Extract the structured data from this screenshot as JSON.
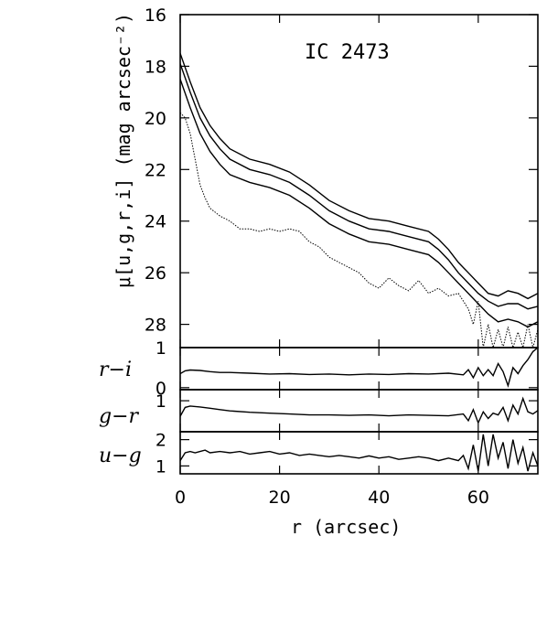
{
  "chart_data": {
    "type": "line",
    "title": "IC 2473",
    "panels": [
      {
        "id": "surface-brightness",
        "ylabel": "μ[u,g,r,i] (mag arcsec⁻²)",
        "ylim": [
          28.9,
          16
        ],
        "yticks": [
          16,
          18,
          20,
          22,
          24,
          26,
          28
        ],
        "series": [
          {
            "x": [
              0,
              2,
              4,
              6,
              8,
              10,
              14,
              18,
              22,
              26,
              30,
              34,
              38,
              42,
              46,
              50,
              52,
              54,
              56,
              58,
              60,
              62,
              64,
              66,
              68,
              70,
              72
            ],
            "y": [
              17.5,
              18.6,
              19.6,
              20.3,
              20.8,
              21.2,
              21.6,
              21.8,
              22.1,
              22.6,
              23.2,
              23.6,
              23.9,
              24.0,
              24.2,
              24.4,
              24.7,
              25.1,
              25.6,
              26.0,
              26.4,
              26.8,
              26.9,
              26.7,
              26.8,
              27.0,
              26.8
            ]
          },
          {
            "x": [
              0,
              2,
              4,
              6,
              8,
              10,
              14,
              18,
              22,
              26,
              30,
              34,
              38,
              42,
              46,
              50,
              52,
              54,
              56,
              58,
              60,
              62,
              64,
              66,
              68,
              70,
              72
            ],
            "y": [
              17.9,
              19.0,
              20.0,
              20.7,
              21.2,
              21.6,
              22.0,
              22.2,
              22.5,
              23.0,
              23.6,
              24.0,
              24.3,
              24.4,
              24.6,
              24.8,
              25.1,
              25.5,
              26.0,
              26.4,
              26.8,
              27.1,
              27.3,
              27.2,
              27.2,
              27.4,
              27.3
            ]
          },
          {
            "x": [
              0,
              2,
              4,
              6,
              8,
              10,
              14,
              18,
              22,
              26,
              30,
              34,
              38,
              42,
              46,
              50,
              52,
              54,
              56,
              58,
              60,
              62,
              64,
              66,
              68,
              70,
              72
            ],
            "y": [
              18.5,
              19.6,
              20.6,
              21.3,
              21.8,
              22.2,
              22.5,
              22.7,
              23.0,
              23.5,
              24.1,
              24.5,
              24.8,
              24.9,
              25.1,
              25.3,
              25.6,
              26.0,
              26.4,
              26.8,
              27.2,
              27.6,
              27.9,
              27.8,
              27.9,
              28.1,
              27.9
            ]
          },
          {
            "x": [
              0,
              1,
              2,
              3,
              4,
              5,
              6,
              8,
              10,
              12,
              14,
              16,
              18,
              20,
              22,
              24,
              26,
              28,
              30,
              32,
              34,
              36,
              38,
              40,
              42,
              44,
              46,
              48,
              50,
              52,
              54,
              56,
              58,
              59,
              60,
              61,
              62,
              63,
              64,
              65,
              66,
              67,
              68,
              69,
              70,
              71,
              72
            ],
            "y": [
              19.8,
              20.0,
              20.6,
              21.6,
              22.6,
              23.1,
              23.5,
              23.8,
              24.0,
              24.3,
              24.3,
              24.4,
              24.3,
              24.4,
              24.3,
              24.4,
              24.8,
              25.0,
              25.4,
              25.6,
              25.8,
              26.0,
              26.4,
              26.6,
              26.2,
              26.5,
              26.7,
              26.3,
              26.8,
              26.6,
              26.9,
              26.8,
              27.4,
              28.0,
              27.1,
              28.9,
              28.0,
              28.9,
              28.2,
              28.9,
              28.1,
              28.9,
              28.3,
              28.9,
              28.0,
              28.9,
              28.2
            ],
            "style": "dotted"
          }
        ]
      },
      {
        "id": "r-i",
        "ylabel": "r−i",
        "ylim": [
          -0.05,
          1.0
        ],
        "yticks": [
          0,
          1
        ],
        "series": [
          {
            "x": [
              0,
              1,
              2,
              4,
              6,
              8,
              10,
              14,
              18,
              22,
              26,
              30,
              34,
              38,
              42,
              46,
              50,
              54,
              57,
              58,
              59,
              60,
              61,
              62,
              63,
              64,
              65,
              66,
              67,
              68,
              69,
              70,
              71,
              72
            ],
            "y": [
              0.35,
              0.42,
              0.44,
              0.43,
              0.4,
              0.38,
              0.38,
              0.36,
              0.34,
              0.35,
              0.33,
              0.34,
              0.32,
              0.34,
              0.33,
              0.35,
              0.34,
              0.36,
              0.32,
              0.45,
              0.25,
              0.5,
              0.3,
              0.45,
              0.3,
              0.6,
              0.4,
              0.05,
              0.5,
              0.35,
              0.55,
              0.7,
              0.9,
              1.0
            ]
          }
        ]
      },
      {
        "id": "g-r",
        "ylabel": "g−r",
        "ylim": [
          0.3,
          1.25
        ],
        "yticks": [
          1
        ],
        "series": [
          {
            "x": [
              0,
              1,
              2,
              4,
              6,
              8,
              10,
              14,
              18,
              22,
              26,
              30,
              34,
              38,
              42,
              46,
              50,
              54,
              57,
              58,
              59,
              60,
              61,
              62,
              63,
              64,
              65,
              66,
              67,
              68,
              69,
              70,
              71,
              72
            ],
            "y": [
              0.65,
              0.85,
              0.88,
              0.86,
              0.83,
              0.8,
              0.77,
              0.74,
              0.72,
              0.7,
              0.68,
              0.68,
              0.67,
              0.68,
              0.66,
              0.68,
              0.67,
              0.66,
              0.7,
              0.55,
              0.8,
              0.5,
              0.75,
              0.6,
              0.72,
              0.68,
              0.85,
              0.55,
              0.9,
              0.7,
              1.05,
              0.75,
              0.7,
              0.78
            ]
          }
        ]
      },
      {
        "id": "u-g",
        "ylabel": "u−g",
        "ylim": [
          0.7,
          2.3
        ],
        "yticks": [
          1,
          2
        ],
        "series": [
          {
            "x": [
              0,
              1,
              2,
              3,
              4,
              5,
              6,
              8,
              10,
              12,
              14,
              16,
              18,
              20,
              22,
              24,
              26,
              28,
              30,
              32,
              34,
              36,
              38,
              40,
              42,
              44,
              46,
              48,
              50,
              52,
              54,
              56,
              57,
              58,
              59,
              60,
              61,
              62,
              63,
              64,
              65,
              66,
              67,
              68,
              69,
              70,
              71,
              72
            ],
            "y": [
              1.2,
              1.5,
              1.55,
              1.5,
              1.55,
              1.6,
              1.5,
              1.55,
              1.5,
              1.55,
              1.45,
              1.5,
              1.55,
              1.45,
              1.5,
              1.4,
              1.45,
              1.4,
              1.35,
              1.4,
              1.35,
              1.3,
              1.38,
              1.3,
              1.35,
              1.25,
              1.3,
              1.35,
              1.3,
              1.2,
              1.3,
              1.2,
              1.4,
              0.9,
              1.8,
              0.8,
              2.2,
              1.0,
              2.2,
              1.3,
              1.9,
              0.9,
              2.0,
              1.1,
              1.7,
              0.8,
              1.5,
              1.0
            ]
          }
        ]
      }
    ],
    "xlabel": "r (arcsec)",
    "xlim": [
      0,
      72
    ],
    "xticks": [
      0,
      20,
      40,
      60
    ],
    "grid": false
  }
}
